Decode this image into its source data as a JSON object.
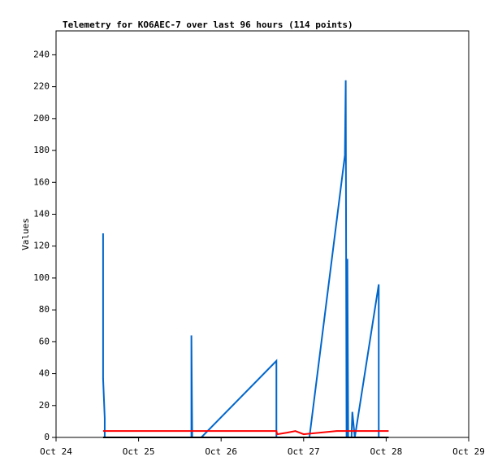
{
  "chart_data": {
    "type": "line",
    "title": "Telemetry for KO6AEC-7 over last 96 hours (114 points)",
    "y_label": "Values",
    "xlim": [
      24,
      29
    ],
    "xticks": [
      {
        "value": 24,
        "label": "Oct 24"
      },
      {
        "value": 25,
        "label": "Oct 25"
      },
      {
        "value": 26,
        "label": "Oct 26"
      },
      {
        "value": 27,
        "label": "Oct 27"
      },
      {
        "value": 28,
        "label": "Oct 28"
      },
      {
        "value": 29,
        "label": "Oct 29"
      }
    ],
    "ylim": [
      0,
      255
    ],
    "yticks": [
      0,
      20,
      40,
      60,
      80,
      100,
      120,
      140,
      160,
      180,
      200,
      220,
      240
    ],
    "series": [
      {
        "color": "#0066cc",
        "x": [
          24.57,
          24.57,
          24.59,
          24.59,
          25.64,
          25.64,
          25.65,
          25.76,
          26.67,
          26.67,
          27.07,
          27.5,
          27.51,
          27.52,
          27.53,
          27.54,
          27.58,
          27.59,
          27.62,
          27.91,
          27.91
        ],
        "values": [
          128,
          37,
          12,
          0,
          0,
          64,
          0,
          0,
          48,
          0,
          0,
          177,
          224,
          0,
          112,
          0,
          0,
          16,
          0,
          96,
          0
        ]
      },
      {
        "color": "#ff0000",
        "x": [
          24.57,
          26.67,
          26.68,
          26.8,
          26.9,
          27.0,
          27.2,
          27.4,
          28.03
        ],
        "values": [
          4,
          4,
          2,
          3,
          4,
          2,
          3,
          4,
          4
        ]
      },
      {
        "color": "#000000",
        "x": [
          24.57,
          28.03
        ],
        "values": [
          0,
          0
        ]
      }
    ]
  }
}
